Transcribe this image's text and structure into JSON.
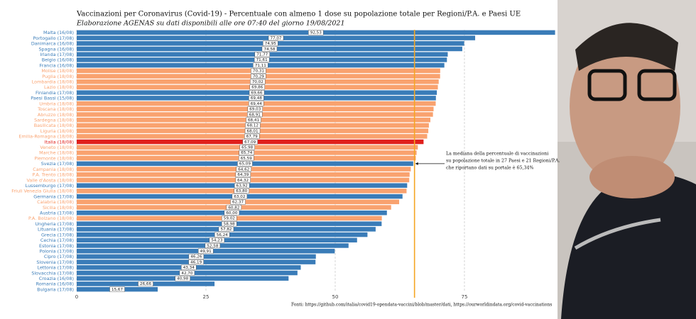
{
  "chart_data": {
    "type": "barh",
    "title": "Vaccinazioni per Coronavirus (Covid-19) - Percentuale con almeno 1 dose su popolazione totale per Regioni/P.A. e Paesi UE",
    "subtitle": "Elaborazione AGENAS su dati disponibili alle ore 07:40  del giorno  19/08/2021",
    "categories": [
      "Malta (16/08)",
      "Portogallo (17/08)",
      "Danimarca (16/08)",
      "Spagna (16/08)",
      "Irlanda (17/08)",
      "Belgio (16/08)",
      "Francia (16/08)",
      "Molise (18/08)",
      "Puglia (18/08)",
      "Lombardia (18/08)",
      "Lazio (18/08)",
      "Finlandia (17/08)",
      "Paesi Bassi (15/08)",
      "Umbria (18/08)",
      "Toscana (18/08)",
      "Abruzzo (18/08)",
      "Sardegna (18/08)",
      "Basilicata (18/08)",
      "Liguria (18/08)",
      "Emilia-Romagna (18/08)",
      "Italia (18/08)",
      "Veneto (18/08)",
      "Marche (18/08)",
      "Piemonte (18/08)",
      "Svezia (17/08)",
      "Campania (18/08)",
      "P.A. Trento (18/08)",
      "Valle d'Aosta (18/08)",
      "Lussemburgo (17/08)",
      "Friuli Venezia Giulia (18/08)",
      "Germania (17/08)",
      "Calabria (18/08)",
      "Sicilia (18/08)",
      "Austria (17/08)",
      "P.A. Bolzano (18/08)",
      "Ungheria (17/08)",
      "Lituania (17/08)",
      "Grecia (17/08)",
      "Cechia (17/08)",
      "Estonia (17/08)",
      "Polonia (17/08)",
      "Cipro (17/08)",
      "Slovenia (17/08)",
      "Lettonia (17/08)",
      "Slovacchia (17/08)",
      "Croazia (16/08)",
      "Romania (16/08)",
      "Bulgaria (17/08)"
    ],
    "values": [
      92.53,
      77.07,
      74.95,
      74.58,
      71.77,
      71.61,
      71.11,
      70.31,
      70.29,
      70.02,
      69.86,
      69.66,
      69.48,
      69.44,
      69.03,
      68.91,
      68.41,
      68.12,
      68.01,
      67.79,
      67.09,
      65.98,
      65.74,
      65.59,
      65.09,
      64.62,
      64.39,
      64.32,
      63.92,
      63.8,
      63.02,
      62.37,
      60.82,
      60.0,
      59.02,
      58.98,
      57.82,
      56.24,
      54.23,
      52.58,
      49.91,
      46.26,
      46.19,
      43.34,
      42.7,
      40.98,
      26.66,
      15.67
    ],
    "value_labels": [
      "92,53",
      "77,07",
      "74,95",
      "74,58",
      "71,77",
      "71,61",
      "71,11",
      "70,31",
      "70,29",
      "70,02",
      "69,86",
      "69,66",
      "69,48",
      "69,44",
      "69,03",
      "68,91",
      "68,41",
      "68,12",
      "68,01",
      "67,79",
      "67,09",
      "65,98",
      "65,74",
      "65,59",
      "65,09",
      "64,62",
      "64,39",
      "64,32",
      "63,92",
      "63,80",
      "63,02",
      "62,37",
      "60,82",
      "60,00",
      "59,02",
      "58,98",
      "57,82",
      "56,24",
      "54,23",
      "52,58",
      "49,91",
      "46,26",
      "46,19",
      "43,34",
      "42,70",
      "40,98",
      "26,66",
      "15,67"
    ],
    "colors": [
      "#3a7cb8",
      "#3a7cb8",
      "#3a7cb8",
      "#3a7cb8",
      "#3a7cb8",
      "#3a7cb8",
      "#3a7cb8",
      "#f9a26f",
      "#f9a26f",
      "#f9a26f",
      "#f9a26f",
      "#3a7cb8",
      "#3a7cb8",
      "#f9a26f",
      "#f9a26f",
      "#f9a26f",
      "#f9a26f",
      "#f9a26f",
      "#f9a26f",
      "#f9a26f",
      "#e0201c",
      "#f9a26f",
      "#f9a26f",
      "#f9a26f",
      "#3a7cb8",
      "#f9a26f",
      "#f9a26f",
      "#f9a26f",
      "#3a7cb8",
      "#f9a26f",
      "#3a7cb8",
      "#f9a26f",
      "#f9a26f",
      "#3a7cb8",
      "#f9a26f",
      "#3a7cb8",
      "#3a7cb8",
      "#3a7cb8",
      "#3a7cb8",
      "#3a7cb8",
      "#3a7cb8",
      "#3a7cb8",
      "#3a7cb8",
      "#3a7cb8",
      "#3a7cb8",
      "#3a7cb8",
      "#3a7cb8",
      "#3a7cb8"
    ],
    "xlim": [
      0,
      93
    ],
    "xticks": [
      0,
      25,
      50,
      75
    ],
    "grid": true,
    "median": 65.34,
    "median_color": "#f5a623",
    "annotation": [
      "La mediana della percentuale di vaccinazioni",
      "su popolazione totale in 27 Paesi e 21 Regioni/P.A.",
      "che riportano dati su portale è 65,34%"
    ],
    "source": "Fonti: https://github.com/italia/covid19-opendata-vaccini/blob/master/dati, https://ourworldindata.org/covid-vaccinations"
  }
}
